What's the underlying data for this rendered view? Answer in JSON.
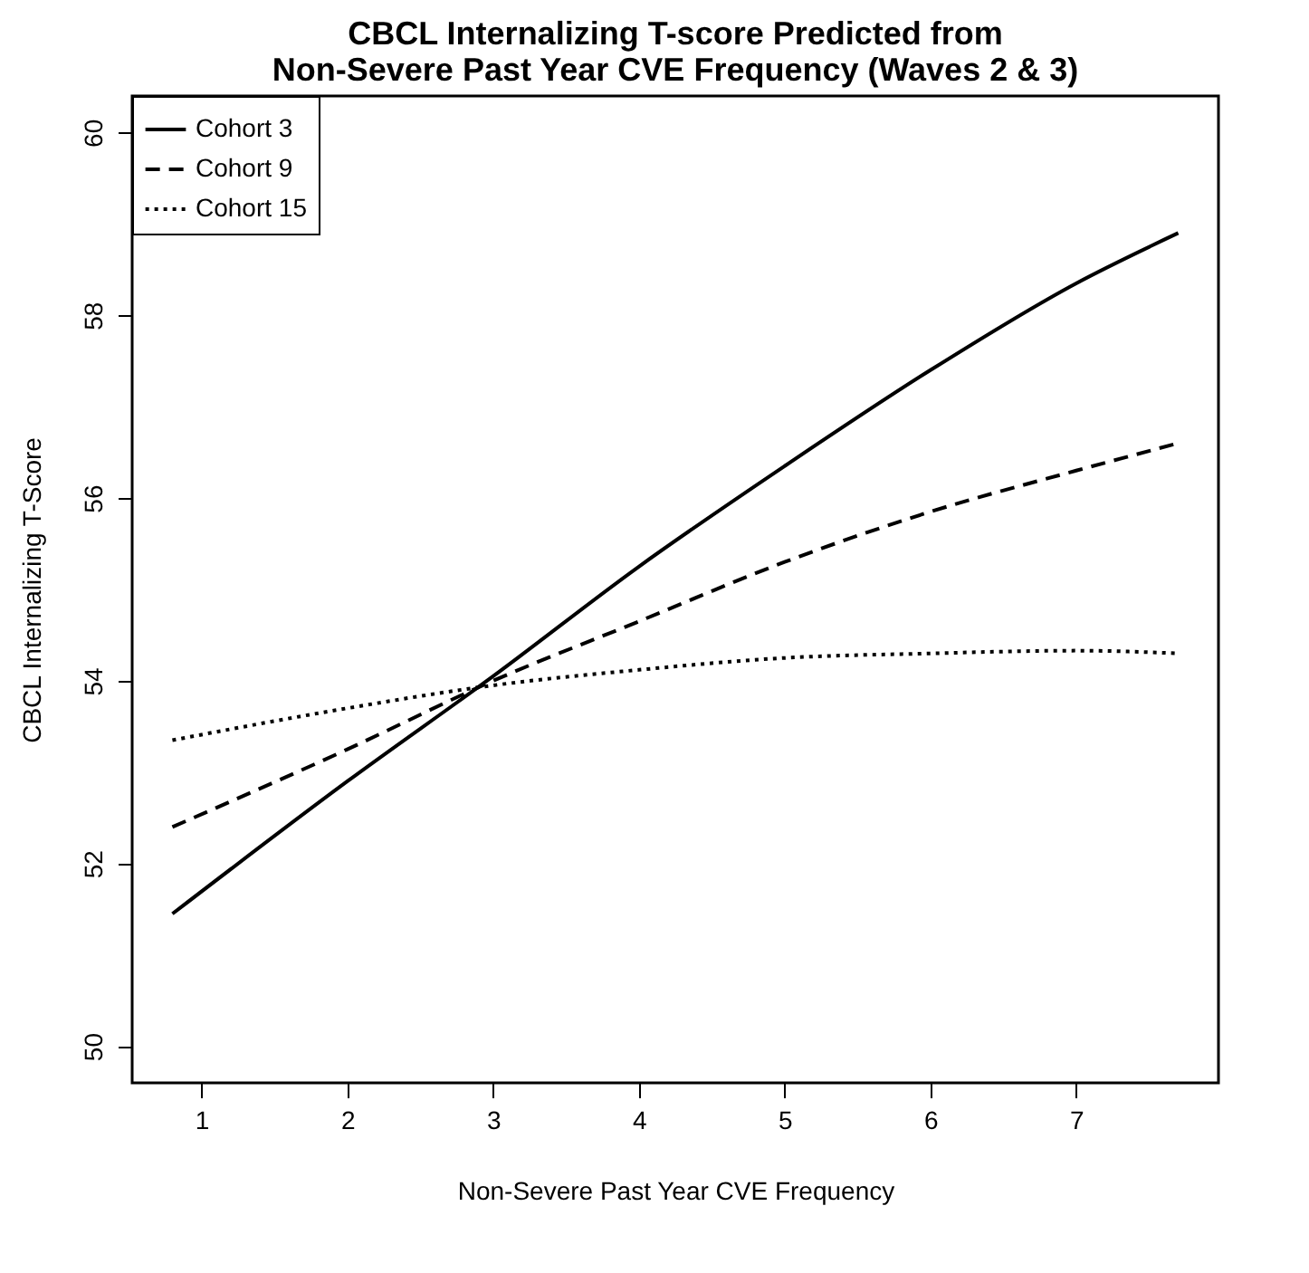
{
  "chart_data": {
    "type": "line",
    "title": "CBCL Internalizing T-score Predicted from\nNon-Severe Past Year CVE Frequency (Waves 2 & 3)",
    "xlabel": "Non-Severe Past Year CVE Frequency",
    "ylabel": "CBCL Internalizing T-Score",
    "x": [
      0.8,
      2,
      3,
      4,
      5,
      6,
      7,
      7.7
    ],
    "series": [
      {
        "name": "Cohort 3",
        "color": "#000000",
        "line_style": "solid",
        "values": [
          51.45,
          52.9,
          54.05,
          55.25,
          56.35,
          57.4,
          58.35,
          58.9
        ]
      },
      {
        "name": "Cohort 9",
        "color": "#000000",
        "line_style": "dashed",
        "values": [
          52.4,
          53.25,
          54.0,
          54.65,
          55.3,
          55.85,
          56.3,
          56.6
        ]
      },
      {
        "name": "Cohort 15",
        "color": "#000000",
        "line_style": "dotted",
        "values": [
          53.35,
          53.7,
          53.95,
          54.12,
          54.25,
          54.3,
          54.33,
          54.3
        ]
      }
    ],
    "xlim": [
      0.524,
      7.976
    ],
    "ylim": [
      49.6,
      60.4
    ],
    "xticks": [
      1,
      2,
      3,
      4,
      5,
      6,
      7
    ],
    "yticks": [
      50,
      52,
      54,
      56,
      58,
      60
    ],
    "legend": "top left",
    "grid": false,
    "marker": "none"
  }
}
